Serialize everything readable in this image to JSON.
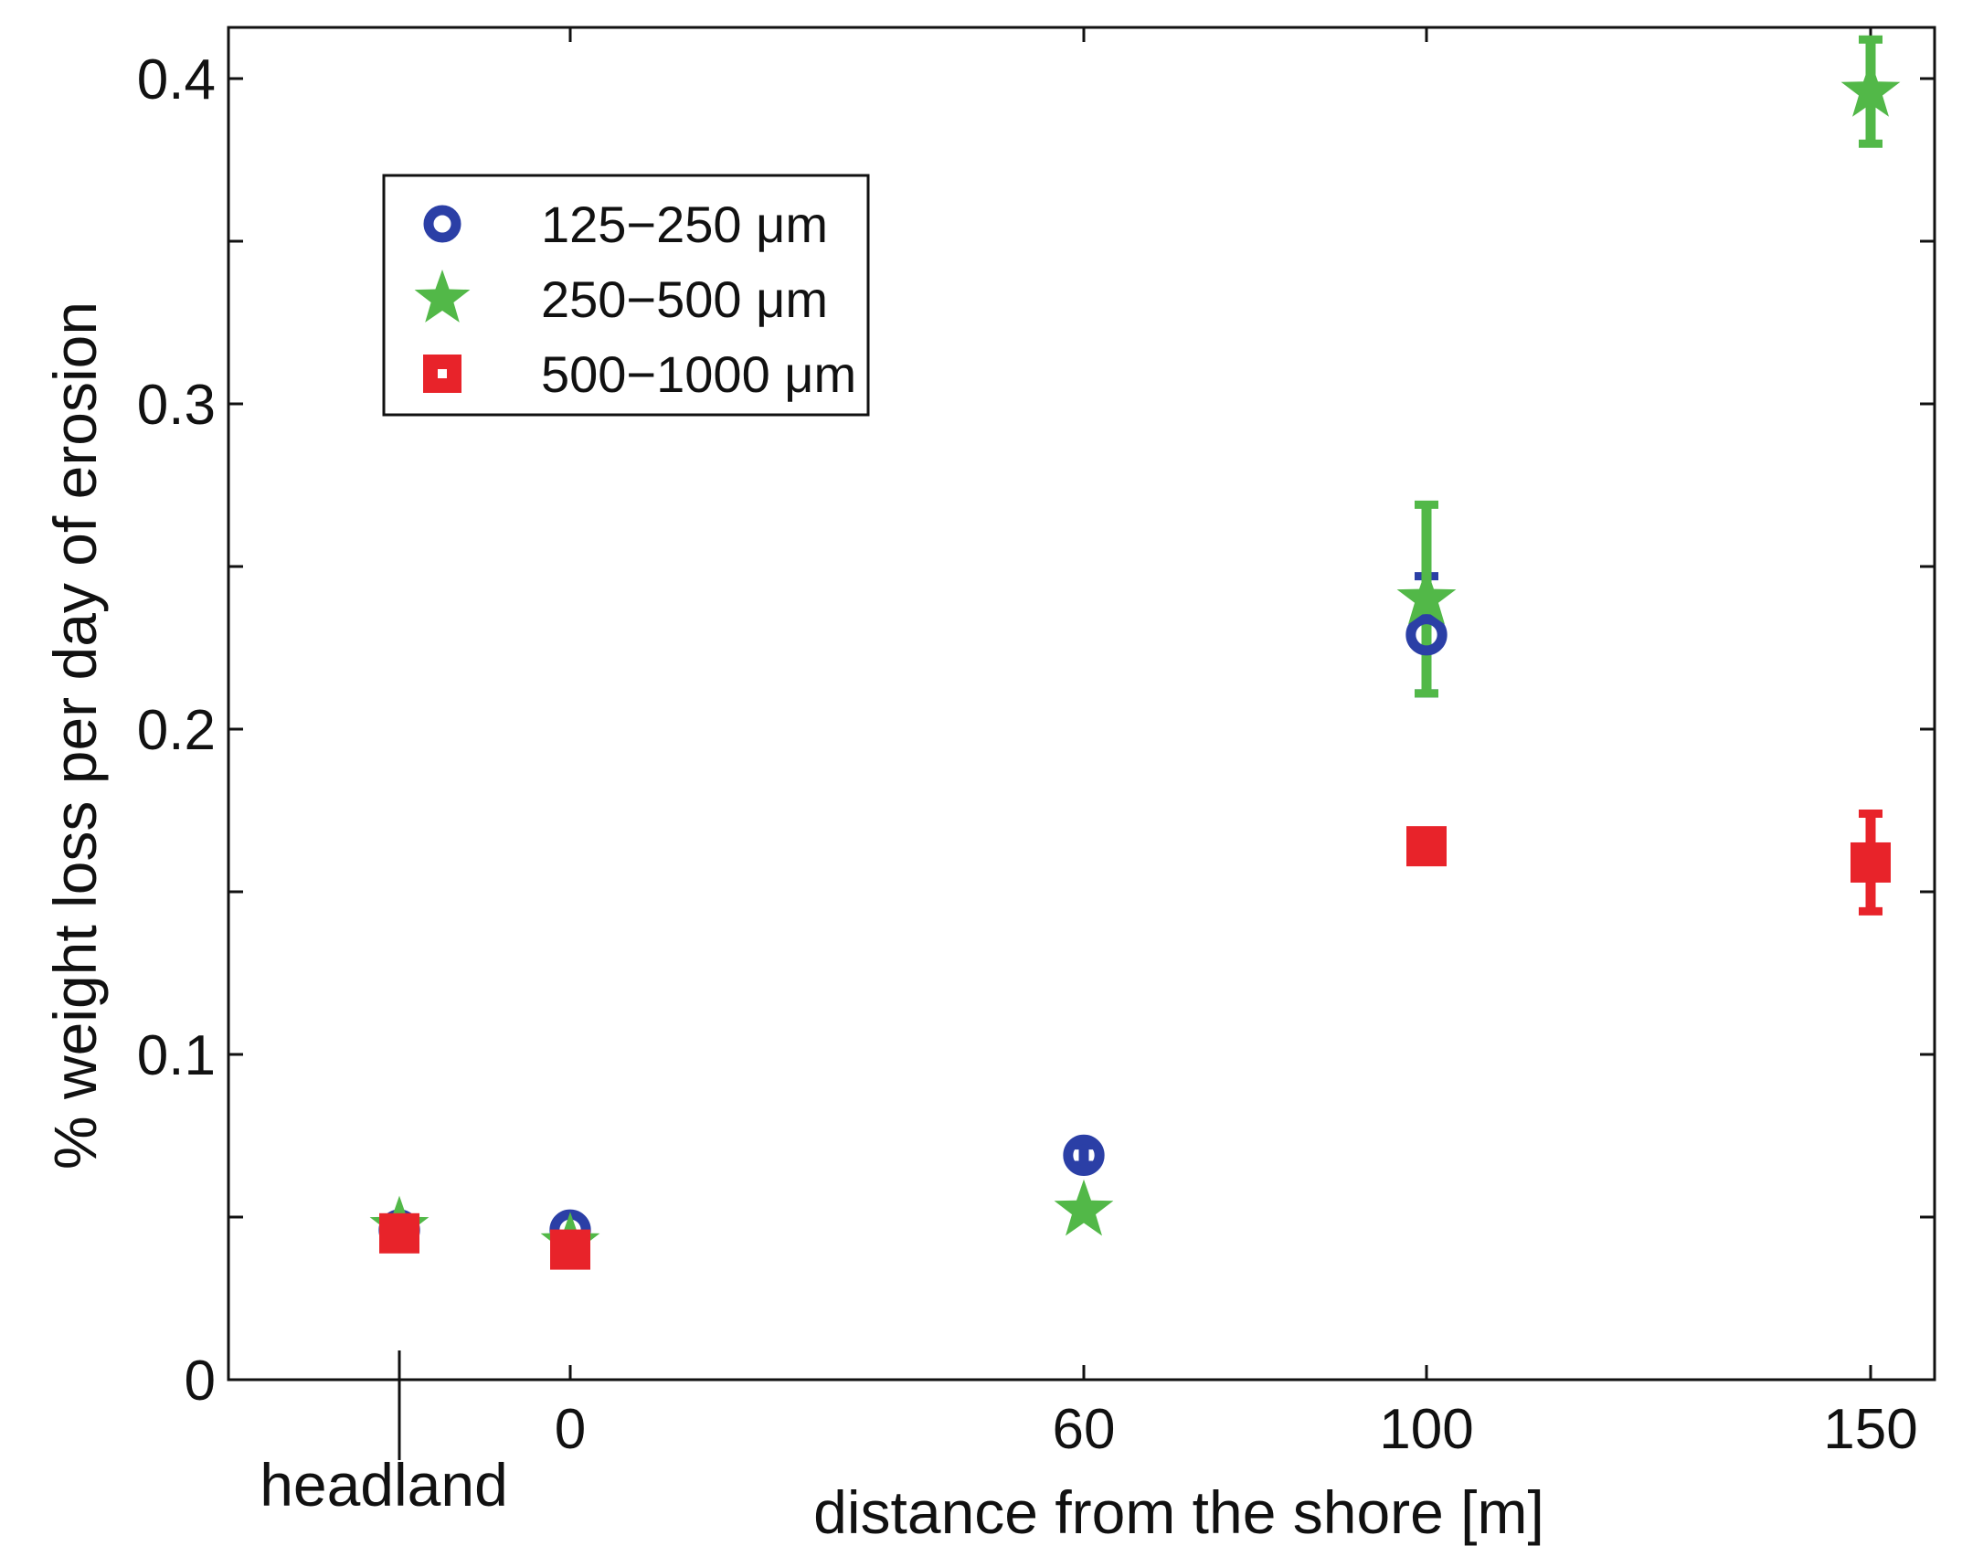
{
  "chart_data": {
    "type": "scatter",
    "xlabel": "distance from the shore [m]",
    "ylabel": "% weight loss per day of erosion",
    "xlim": [
      -20,
      160
    ],
    "ylim": [
      0,
      0.415
    ],
    "x_ticks": [
      {
        "value": -20,
        "label": "headland"
      },
      {
        "value": 0,
        "label": "0"
      },
      {
        "value": 60,
        "label": "60"
      },
      {
        "value": 100,
        "label": "100"
      },
      {
        "value": 150,
        "label": "150"
      }
    ],
    "y_ticks": [
      {
        "value": 0,
        "label": "0"
      },
      {
        "value": 0.05,
        "label": ""
      },
      {
        "value": 0.1,
        "label": "0.1"
      },
      {
        "value": 0.15,
        "label": ""
      },
      {
        "value": 0.2,
        "label": "0.2"
      },
      {
        "value": 0.25,
        "label": ""
      },
      {
        "value": 0.3,
        "label": "0.3"
      },
      {
        "value": 0.35,
        "label": ""
      },
      {
        "value": 0.4,
        "label": "0.4"
      }
    ],
    "legend_position": "upper-left",
    "series": [
      {
        "name": "125−250 μm",
        "marker": "circle",
        "color": "#2b3fa6",
        "points": [
          {
            "x": -20,
            "y": 0.046,
            "err": 0
          },
          {
            "x": 0,
            "y": 0.046,
            "err": 0
          },
          {
            "x": 60,
            "y": 0.069,
            "err": 0.003
          },
          {
            "x": 100,
            "y": 0.229,
            "err": 0.018
          }
        ]
      },
      {
        "name": "250−500 μm",
        "marker": "star",
        "color": "#52b848",
        "points": [
          {
            "x": -20,
            "y": 0.047,
            "err": 0
          },
          {
            "x": 0,
            "y": 0.042,
            "err": 0
          },
          {
            "x": 60,
            "y": 0.052,
            "err": 0
          },
          {
            "x": 100,
            "y": 0.24,
            "err": 0.029
          },
          {
            "x": 150,
            "y": 0.396,
            "err": 0.016
          }
        ]
      },
      {
        "name": "500−1000 μm",
        "marker": "square",
        "color": "#e8232a",
        "points": [
          {
            "x": -20,
            "y": 0.045,
            "err": 0
          },
          {
            "x": 0,
            "y": 0.04,
            "err": 0
          },
          {
            "x": 100,
            "y": 0.164,
            "err": 0
          },
          {
            "x": 150,
            "y": 0.159,
            "err": 0.015
          }
        ]
      }
    ]
  }
}
